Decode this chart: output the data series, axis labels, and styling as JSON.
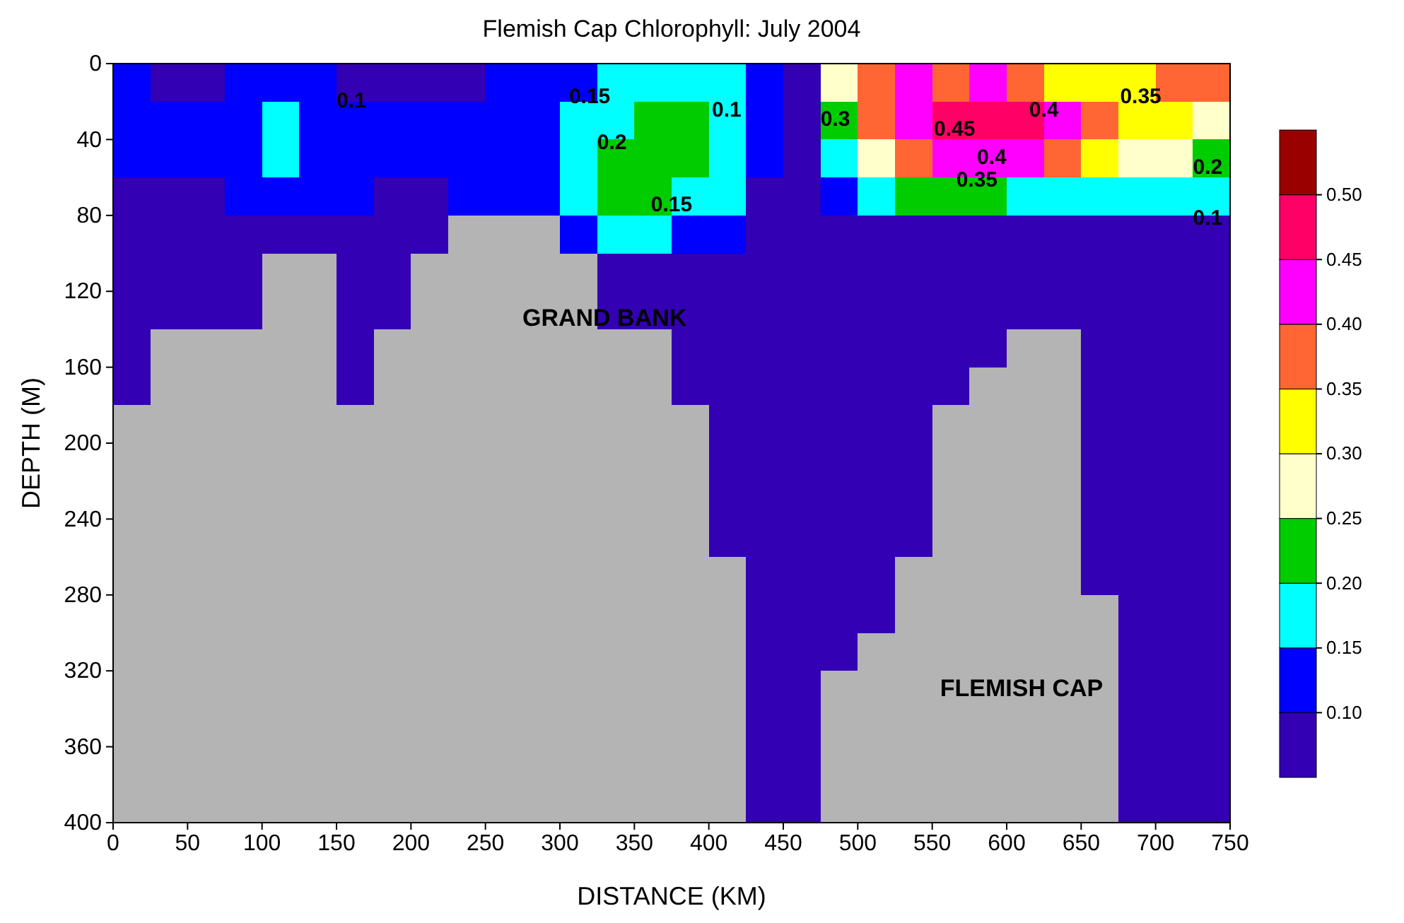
{
  "chart_data": {
    "type": "heatmap",
    "title": "Flemish Cap Chlorophyll: July 2004",
    "xlabel": "DISTANCE (KM)",
    "ylabel": "DEPTH (M)",
    "x": [
      12.5,
      37.5,
      62.5,
      87.5,
      112.5,
      137.5,
      162.5,
      187.5,
      212.5,
      237.5,
      262.5,
      287.5,
      312.5,
      337.5,
      362.5,
      387.5,
      412.5,
      437.5,
      462.5,
      487.5,
      512.5,
      537.5,
      562.5,
      587.5,
      612.5,
      637.5,
      662.5,
      687.5,
      712.5,
      737.5
    ],
    "y": [
      10,
      30,
      50,
      70,
      90,
      110,
      130,
      150,
      170,
      190,
      210,
      230,
      250,
      270,
      290,
      310,
      330,
      350,
      370,
      390
    ],
    "xlim": [
      0,
      750
    ],
    "xticks": [
      0,
      50,
      100,
      150,
      200,
      250,
      300,
      350,
      400,
      450,
      500,
      550,
      600,
      650,
      700,
      750
    ],
    "ylim": [
      400,
      0
    ],
    "yticks": [
      0,
      40,
      80,
      120,
      160,
      200,
      240,
      280,
      320,
      360,
      400
    ],
    "clim": [
      0.05,
      0.55
    ],
    "cticks": [
      {
        "value": 0.1,
        "label": "0.10"
      },
      {
        "value": 0.15,
        "label": "0.15"
      },
      {
        "value": 0.2,
        "label": "0.20"
      },
      {
        "value": 0.25,
        "label": "0.25"
      },
      {
        "value": 0.3,
        "label": "0.30"
      },
      {
        "value": 0.35,
        "label": "0.35"
      },
      {
        "value": 0.4,
        "label": "0.40"
      },
      {
        "value": 0.45,
        "label": "0.45"
      },
      {
        "value": 0.5,
        "label": "0.50"
      }
    ],
    "colors": [
      "#3300b4",
      "#0000ff",
      "#00ffff",
      "#00cc00",
      "#ffffcc",
      "#ffff00",
      "#ff6633",
      "#ff00ff",
      "#ff0066",
      "#990000"
    ],
    "cells": [
      [
        0.125,
        0.075,
        0.075,
        0.125,
        0.125,
        0.125,
        0.075,
        0.075,
        0.075,
        0.075,
        0.125,
        0.125,
        0.125,
        0.175,
        0.175,
        0.175,
        0.175,
        0.125,
        0.075,
        0.275,
        0.375,
        0.425,
        0.375,
        0.425,
        0.375,
        0.325,
        0.325,
        0.325,
        0.375,
        0.375
      ],
      [
        0.125,
        0.125,
        0.125,
        0.125,
        0.175,
        0.125,
        0.125,
        0.125,
        0.125,
        0.125,
        0.125,
        0.125,
        0.175,
        0.175,
        0.225,
        0.225,
        0.175,
        0.125,
        0.075,
        0.225,
        0.375,
        0.425,
        0.475,
        0.475,
        0.475,
        0.425,
        0.375,
        0.325,
        0.325,
        0.275
      ],
      [
        0.125,
        0.125,
        0.125,
        0.125,
        0.175,
        0.125,
        0.125,
        0.125,
        0.125,
        0.125,
        0.125,
        0.125,
        0.175,
        0.225,
        0.225,
        0.225,
        0.175,
        0.125,
        0.075,
        0.175,
        0.275,
        0.375,
        0.425,
        0.425,
        0.425,
        0.375,
        0.325,
        0.275,
        0.275,
        0.225
      ],
      [
        0.075,
        0.075,
        0.075,
        0.125,
        0.125,
        0.125,
        0.125,
        0.075,
        0.075,
        0.125,
        0.125,
        0.125,
        0.175,
        0.225,
        0.225,
        0.175,
        0.175,
        0.075,
        0.075,
        0.125,
        0.175,
        0.225,
        0.225,
        0.225,
        0.175,
        0.175,
        0.175,
        0.175,
        0.175,
        0.175
      ],
      [
        0.075,
        0.075,
        0.075,
        0.075,
        0.075,
        0.075,
        0.075,
        0.075,
        0.075,
        null,
        null,
        null,
        0.125,
        0.175,
        0.175,
        0.125,
        0.125,
        0.075,
        0.075,
        0.075,
        0.075,
        0.075,
        0.075,
        0.075,
        0.075,
        0.075,
        0.075,
        0.075,
        0.075,
        0.075
      ],
      [
        0.075,
        0.075,
        0.075,
        0.075,
        null,
        null,
        0.075,
        0.075,
        null,
        null,
        null,
        null,
        null,
        0.075,
        0.075,
        0.075,
        0.075,
        0.075,
        0.075,
        0.075,
        0.075,
        0.075,
        0.075,
        0.075,
        0.075,
        0.075,
        0.075,
        0.075,
        0.075,
        0.075
      ],
      [
        0.075,
        0.075,
        0.075,
        0.075,
        null,
        null,
        0.075,
        0.075,
        null,
        null,
        null,
        null,
        null,
        0.075,
        0.075,
        0.075,
        0.075,
        0.075,
        0.075,
        0.075,
        0.075,
        0.075,
        0.075,
        0.075,
        0.075,
        0.075,
        0.075,
        0.075,
        0.075,
        0.075
      ],
      [
        0.075,
        null,
        null,
        null,
        null,
        null,
        0.075,
        null,
        null,
        null,
        null,
        null,
        null,
        null,
        null,
        0.075,
        0.075,
        0.075,
        0.075,
        0.075,
        0.075,
        0.075,
        0.075,
        0.075,
        null,
        null,
        0.075,
        0.075,
        0.075,
        0.075
      ],
      [
        0.075,
        null,
        null,
        null,
        null,
        null,
        0.075,
        null,
        null,
        null,
        null,
        null,
        null,
        null,
        null,
        0.075,
        0.075,
        0.075,
        0.075,
        0.075,
        0.075,
        0.075,
        0.075,
        null,
        null,
        null,
        0.075,
        0.075,
        0.075,
        0.075
      ],
      [
        null,
        null,
        null,
        null,
        null,
        null,
        null,
        null,
        null,
        null,
        null,
        null,
        null,
        null,
        null,
        null,
        0.075,
        0.075,
        0.075,
        0.075,
        0.075,
        0.075,
        null,
        null,
        null,
        null,
        0.075,
        0.075,
        0.075,
        0.075
      ],
      [
        null,
        null,
        null,
        null,
        null,
        null,
        null,
        null,
        null,
        null,
        null,
        null,
        null,
        null,
        null,
        null,
        0.075,
        0.075,
        0.075,
        0.075,
        0.075,
        0.075,
        null,
        null,
        null,
        null,
        0.075,
        0.075,
        0.075,
        0.075
      ],
      [
        null,
        null,
        null,
        null,
        null,
        null,
        null,
        null,
        null,
        null,
        null,
        null,
        null,
        null,
        null,
        null,
        0.075,
        0.075,
        0.075,
        0.075,
        0.075,
        0.075,
        null,
        null,
        null,
        null,
        0.075,
        0.075,
        0.075,
        0.075
      ],
      [
        null,
        null,
        null,
        null,
        null,
        null,
        null,
        null,
        null,
        null,
        null,
        null,
        null,
        null,
        null,
        null,
        0.075,
        0.075,
        0.075,
        0.075,
        0.075,
        0.075,
        null,
        null,
        null,
        null,
        0.075,
        0.075,
        0.075,
        0.075
      ],
      [
        null,
        null,
        null,
        null,
        null,
        null,
        null,
        null,
        null,
        null,
        null,
        null,
        null,
        null,
        null,
        null,
        null,
        0.075,
        0.075,
        0.075,
        0.075,
        null,
        null,
        null,
        null,
        null,
        0.075,
        0.075,
        0.075,
        0.075
      ],
      [
        null,
        null,
        null,
        null,
        null,
        null,
        null,
        null,
        null,
        null,
        null,
        null,
        null,
        null,
        null,
        null,
        null,
        0.075,
        0.075,
        0.075,
        0.075,
        null,
        null,
        null,
        null,
        null,
        null,
        0.075,
        0.075,
        0.075
      ],
      [
        null,
        null,
        null,
        null,
        null,
        null,
        null,
        null,
        null,
        null,
        null,
        null,
        null,
        null,
        null,
        null,
        null,
        0.075,
        0.075,
        0.075,
        null,
        null,
        null,
        null,
        null,
        null,
        null,
        0.075,
        0.075,
        0.075
      ],
      [
        null,
        null,
        null,
        null,
        null,
        null,
        null,
        null,
        null,
        null,
        null,
        null,
        null,
        null,
        null,
        null,
        null,
        0.075,
        0.075,
        null,
        null,
        null,
        null,
        null,
        null,
        null,
        null,
        0.075,
        0.075,
        0.075
      ],
      [
        null,
        null,
        null,
        null,
        null,
        null,
        null,
        null,
        null,
        null,
        null,
        null,
        null,
        null,
        null,
        null,
        null,
        0.075,
        0.075,
        null,
        null,
        null,
        null,
        null,
        null,
        null,
        null,
        0.075,
        0.075,
        0.075
      ],
      [
        null,
        null,
        null,
        null,
        null,
        null,
        null,
        null,
        null,
        null,
        null,
        null,
        null,
        null,
        null,
        null,
        null,
        0.075,
        0.075,
        null,
        null,
        null,
        null,
        null,
        null,
        null,
        null,
        0.075,
        0.075,
        0.075
      ],
      [
        null,
        null,
        null,
        null,
        null,
        null,
        null,
        null,
        null,
        null,
        null,
        null,
        null,
        null,
        null,
        null,
        null,
        0.075,
        0.075,
        null,
        null,
        null,
        null,
        null,
        null,
        null,
        null,
        0.075,
        0.075,
        0.075
      ]
    ],
    "annotations": [
      "0.1",
      "0.15",
      "0.2",
      "0.15",
      "0.1",
      "0.3",
      "0.45",
      "0.4",
      "0.35",
      "0.4",
      "0.35",
      "0.2",
      "0.1",
      "GRAND BANK",
      "FLEMISH CAP"
    ]
  }
}
